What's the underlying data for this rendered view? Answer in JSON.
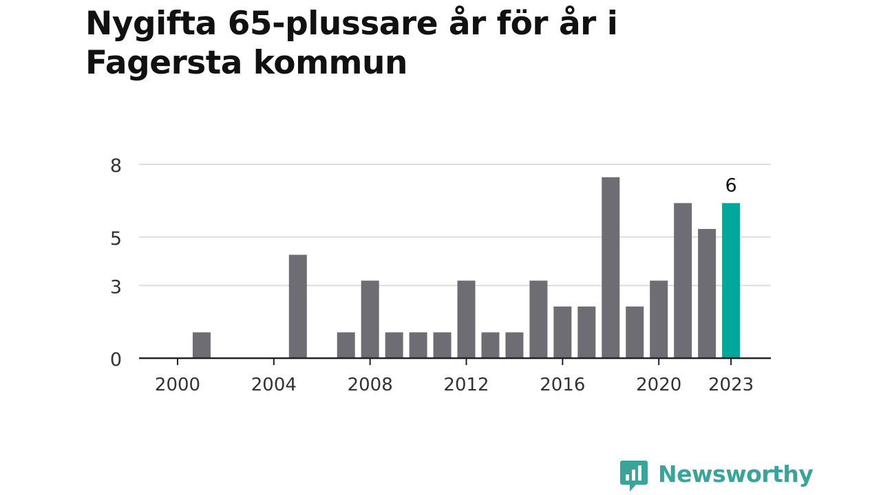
{
  "title": "Nygifta 65-plussare år för år i Fagersta kommun",
  "brand": {
    "name": "Newsworthy",
    "icon": "newsworthy-logo-icon",
    "color": "#3aa49a"
  },
  "colors": {
    "bar": "#6e6d73",
    "highlight": "#00a79b",
    "grid": "#dddddd",
    "axis": "#222222",
    "tick_text": "#333333"
  },
  "chart_data": {
    "type": "bar",
    "title": "Nygifta 65-plussare år för år i Fagersta kommun",
    "xlabel": "",
    "ylabel": "",
    "categories": [
      "2000",
      "2001",
      "2002",
      "2003",
      "2004",
      "2005",
      "2006",
      "2007",
      "2008",
      "2009",
      "2010",
      "2011",
      "2012",
      "2013",
      "2014",
      "2015",
      "2016",
      "2017",
      "2018",
      "2019",
      "2020",
      "2021",
      "2022",
      "2023"
    ],
    "values": [
      0,
      1,
      0,
      0,
      0,
      4,
      0,
      1,
      3,
      1,
      1,
      1,
      3,
      1,
      1,
      3,
      2,
      2,
      7,
      2,
      3,
      6,
      5,
      6
    ],
    "highlight_category": "2023",
    "highlight_label": "6",
    "x_tick_labels": [
      "2000",
      "2004",
      "2008",
      "2012",
      "2016",
      "2020",
      "2023"
    ],
    "y_tick_labels": [
      "0",
      "3",
      "5",
      "8"
    ],
    "ylim": [
      0,
      7.5
    ],
    "grid": true,
    "legend": "none"
  }
}
